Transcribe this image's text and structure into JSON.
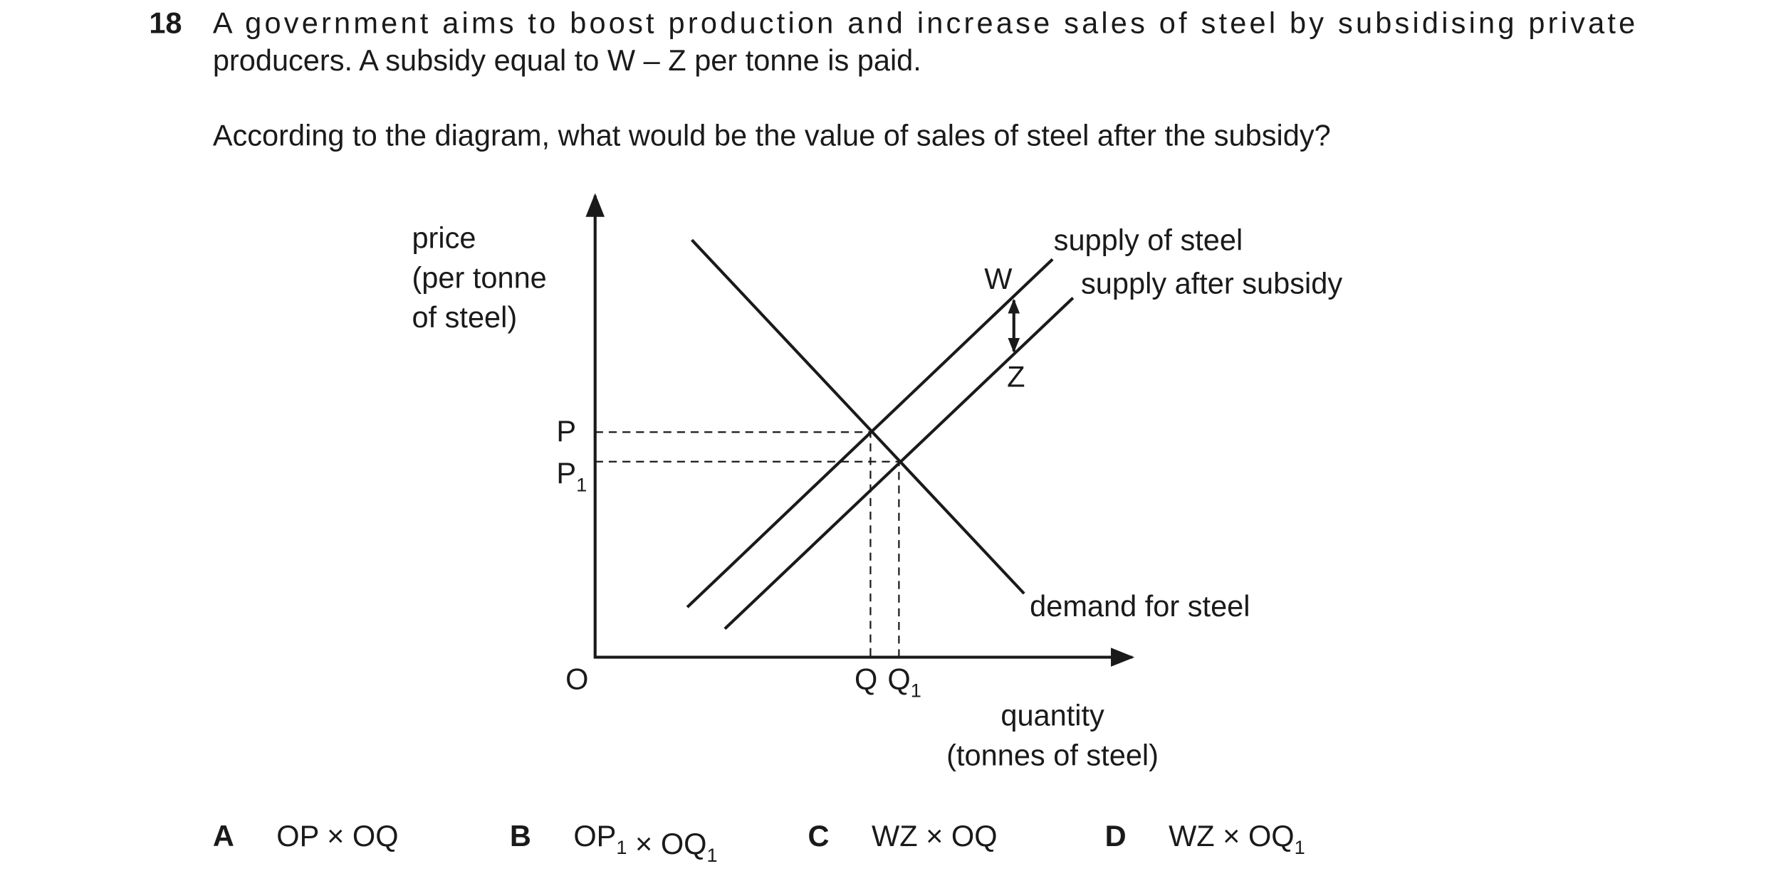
{
  "question": {
    "number": "18",
    "lines": [
      "A government aims to boost production and increase sales of steel by subsidising private",
      "producers. A subsidy equal to W – Z per tonne is paid."
    ],
    "prompt": "According to the diagram, what would be the value of sales of steel after the subsidy?"
  },
  "diagram": {
    "y_axis_label": [
      "price",
      "(per tonne",
      "of steel)"
    ],
    "x_axis_label": [
      "quantity",
      "(tonnes of steel)"
    ],
    "origin": "O",
    "p": {
      "text": "P"
    },
    "p1": {
      "text": "P",
      "sub": "1"
    },
    "q": {
      "text": "Q"
    },
    "q1": {
      "text": "Q",
      "sub": "1"
    },
    "w": "W",
    "z": "Z",
    "supply": "supply of steel",
    "supply_after": "supply after subsidy",
    "demand": "demand for steel"
  },
  "options": [
    {
      "letter": "A",
      "parts": [
        {
          "text": "OP × OQ"
        }
      ]
    },
    {
      "letter": "B",
      "parts": [
        {
          "text": "OP",
          "sub": "1"
        },
        {
          "text": " × OQ",
          "sub": "1"
        }
      ]
    },
    {
      "letter": "C",
      "parts": [
        {
          "text": "WZ × OQ"
        }
      ]
    },
    {
      "letter": "D",
      "parts": [
        {
          "text": "WZ × OQ",
          "sub": "1"
        }
      ]
    }
  ]
}
